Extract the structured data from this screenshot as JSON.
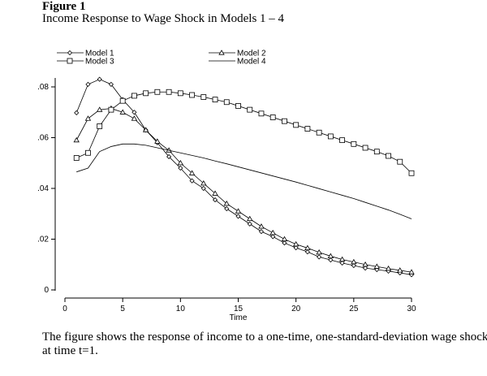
{
  "figure_label": "Figure 1",
  "title": "Income Response to Wage Shock in Models 1 – 4",
  "caption": "The figure shows the response of income to a one-time, one-standard-deviation wage shock at time t=1.",
  "chart_data": {
    "type": "line",
    "title": "Income Response to Wage Shock in Models 1 – 4",
    "xlabel": "Time",
    "ylabel": "",
    "xlim": [
      0,
      30
    ],
    "ylim": [
      0,
      0.08
    ],
    "xticks": [
      0,
      5,
      10,
      15,
      20,
      25,
      30
    ],
    "yticks": [
      0,
      0.02,
      0.04,
      0.06,
      0.08
    ],
    "yticklabels": [
      "0",
      ".02",
      ".04",
      ".06",
      ".08"
    ],
    "legend_position": "top",
    "x": [
      1,
      2,
      3,
      4,
      5,
      6,
      7,
      8,
      9,
      10,
      11,
      12,
      13,
      14,
      15,
      16,
      17,
      18,
      19,
      20,
      21,
      22,
      23,
      24,
      25,
      26,
      27,
      28,
      29,
      30
    ],
    "series": [
      {
        "name": "Model 1",
        "marker": "diamond",
        "values": [
          0.0698,
          0.081,
          0.083,
          0.081,
          0.075,
          0.07,
          0.063,
          0.058,
          0.0525,
          0.048,
          0.043,
          0.04,
          0.0355,
          0.032,
          0.029,
          0.026,
          0.023,
          0.021,
          0.0185,
          0.0166,
          0.015,
          0.013,
          0.0118,
          0.0106,
          0.0096,
          0.0086,
          0.008,
          0.0074,
          0.0067,
          0.006
        ]
      },
      {
        "name": "Model 2",
        "marker": "triangle",
        "values": [
          0.059,
          0.0675,
          0.071,
          0.0715,
          0.07,
          0.0675,
          0.063,
          0.0585,
          0.055,
          0.05,
          0.046,
          0.042,
          0.038,
          0.034,
          0.031,
          0.028,
          0.025,
          0.0225,
          0.02,
          0.018,
          0.0165,
          0.0148,
          0.0133,
          0.012,
          0.011,
          0.01,
          0.0092,
          0.0084,
          0.0077,
          0.007
        ]
      },
      {
        "name": "Model 3",
        "marker": "square",
        "values": [
          0.052,
          0.054,
          0.0645,
          0.071,
          0.0745,
          0.0765,
          0.0775,
          0.078,
          0.078,
          0.0775,
          0.0768,
          0.076,
          0.075,
          0.074,
          0.0725,
          0.071,
          0.0695,
          0.068,
          0.0665,
          0.065,
          0.0635,
          0.062,
          0.0605,
          0.059,
          0.0575,
          0.056,
          0.0545,
          0.0528,
          0.0505,
          0.046
        ]
      },
      {
        "name": "Model 4",
        "marker": "none",
        "values": [
          0.0465,
          0.048,
          0.0545,
          0.0565,
          0.0575,
          0.0575,
          0.057,
          0.056,
          0.055,
          0.054,
          0.053,
          0.052,
          0.0508,
          0.0497,
          0.0485,
          0.0473,
          0.0461,
          0.0449,
          0.0437,
          0.0425,
          0.0412,
          0.0399,
          0.0386,
          0.0373,
          0.036,
          0.0345,
          0.033,
          0.0315,
          0.0298,
          0.028
        ]
      }
    ]
  }
}
